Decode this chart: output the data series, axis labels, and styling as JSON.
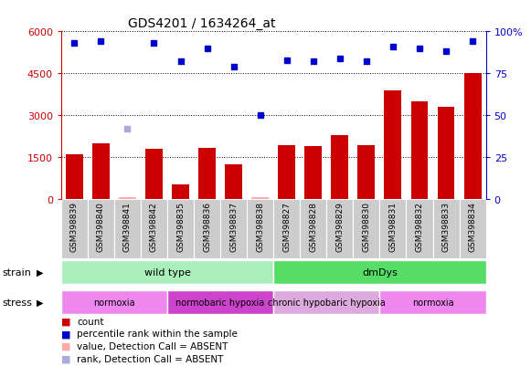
{
  "title": "GDS4201 / 1634264_at",
  "samples": [
    "GSM398839",
    "GSM398840",
    "GSM398841",
    "GSM398842",
    "GSM398835",
    "GSM398836",
    "GSM398837",
    "GSM398838",
    "GSM398827",
    "GSM398828",
    "GSM398829",
    "GSM398830",
    "GSM398831",
    "GSM398832",
    "GSM398833",
    "GSM398834"
  ],
  "counts": [
    1600,
    2000,
    80,
    1800,
    550,
    1850,
    1250,
    80,
    1950,
    1900,
    2300,
    1950,
    3900,
    3500,
    3300,
    4500
  ],
  "counts_absent": [
    false,
    false,
    true,
    false,
    false,
    false,
    false,
    true,
    false,
    false,
    false,
    false,
    false,
    false,
    false,
    false
  ],
  "percentile_ranks": [
    93,
    94,
    42,
    93,
    82,
    90,
    79,
    50,
    83,
    82,
    84,
    82,
    91,
    90,
    88,
    94
  ],
  "rank_absent": [
    false,
    false,
    true,
    false,
    false,
    false,
    false,
    false,
    false,
    false,
    false,
    false,
    false,
    false,
    false,
    false
  ],
  "ylim_left": [
    0,
    6000
  ],
  "ylim_right": [
    0,
    100
  ],
  "yticks_left": [
    0,
    1500,
    3000,
    4500,
    6000
  ],
  "yticks_right": [
    0,
    25,
    50,
    75,
    100
  ],
  "left_color": "#cc0000",
  "right_color": "#0000cc",
  "bar_color": "#cc0000",
  "bar_absent_color": "#ffaaaa",
  "dot_color": "#0000cc",
  "dot_absent_color": "#aaaadd",
  "strain_groups": [
    {
      "label": "wild type",
      "start": 0,
      "end": 8,
      "color": "#aaeebb"
    },
    {
      "label": "dmDys",
      "start": 8,
      "end": 16,
      "color": "#55dd66"
    }
  ],
  "stress_colors": [
    "#ee88ee",
    "#cc44cc",
    "#ddaadd",
    "#ee88ee"
  ],
  "stress_groups": [
    {
      "label": "normoxia",
      "start": 0,
      "end": 4
    },
    {
      "label": "normobaric hypoxia",
      "start": 4,
      "end": 8
    },
    {
      "label": "chronic hypobaric hypoxia",
      "start": 8,
      "end": 12
    },
    {
      "label": "normoxia",
      "start": 12,
      "end": 16
    }
  ],
  "legend_items": [
    {
      "label": "count",
      "color": "#cc0000"
    },
    {
      "label": "percentile rank within the sample",
      "color": "#0000cc"
    },
    {
      "label": "value, Detection Call = ABSENT",
      "color": "#ffaaaa"
    },
    {
      "label": "rank, Detection Call = ABSENT",
      "color": "#aaaadd"
    }
  ],
  "grid_color": "#000000",
  "strain_label": "strain",
  "stress_label": "stress",
  "sample_cell_color": "#cccccc",
  "sample_cell_border": "#ffffff"
}
